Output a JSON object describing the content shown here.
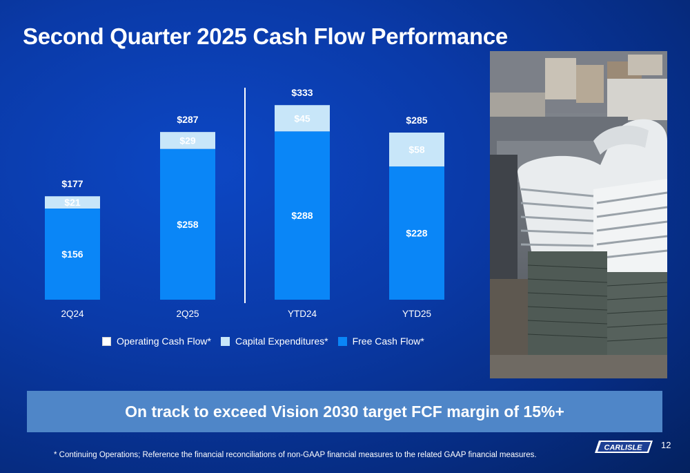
{
  "slide": {
    "title": "Second Quarter 2025 Cash Flow Performance",
    "banner": "On track to exceed Vision 2030 target FCF margin of 15%+",
    "footnote": "*  Continuing Operations; Reference the financial reconciliations of non-GAAP financial measures to the related GAAP financial measures.",
    "page_number": "12",
    "logo_text": "CARLISLE"
  },
  "colors": {
    "background": "#0a3aa8",
    "free_cash_flow": "#0a86f7",
    "capex": "#c8e6f9",
    "operating_cash_flow": "#ffffff",
    "banner": "#4f86c8"
  },
  "legend": [
    {
      "label": "Operating Cash Flow*",
      "color": "#ffffff"
    },
    {
      "label": "Capital Expenditures*",
      "color": "#c8e6f9"
    },
    {
      "label": "Free Cash Flow*",
      "color": "#0a86f7"
    }
  ],
  "chart_data": {
    "type": "bar",
    "stacked": true,
    "categories": [
      "2Q24",
      "2Q25",
      "YTD24",
      "YTD25"
    ],
    "series": [
      {
        "name": "Free Cash Flow*",
        "values": [
          156,
          258,
          288,
          228
        ],
        "labels": [
          "$156",
          "$258",
          "$288",
          "$228"
        ]
      },
      {
        "name": "Capital Expenditures*",
        "values": [
          21,
          29,
          45,
          58
        ],
        "labels": [
          "$21",
          "$29",
          "$45",
          "$58"
        ]
      }
    ],
    "totals": [
      177,
      287,
      333,
      285
    ],
    "total_labels": [
      "$177",
      "$287",
      "$333",
      "$285"
    ],
    "ylim": [
      0,
      390
    ],
    "grid": false,
    "legend_position": "bottom"
  }
}
